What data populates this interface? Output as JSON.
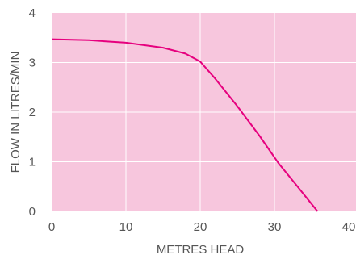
{
  "chart_data": {
    "type": "line",
    "title": "",
    "xlabel": "METRES HEAD",
    "ylabel": "FLOW IN LITRES/MIN",
    "xlim": [
      0,
      40
    ],
    "ylim": [
      0,
      4
    ],
    "x_ticks": [
      "0",
      "10",
      "20",
      "30",
      "40"
    ],
    "y_ticks": [
      "0",
      "1",
      "2",
      "3",
      "4"
    ],
    "grid": true,
    "legend": "none",
    "series": [
      {
        "x": [
          0,
          5,
          10,
          15,
          18,
          20,
          22,
          25,
          28,
          30.5,
          33,
          35.8
        ],
        "y": [
          3.47,
          3.45,
          3.4,
          3.3,
          3.18,
          3.02,
          2.68,
          2.12,
          1.52,
          0.98,
          0.52,
          0.0
        ]
      }
    ],
    "colors": {
      "plot_background": "#F7C6DD",
      "gridline": "#FFFFFF",
      "line": "#E6007E",
      "text": "#555555"
    }
  }
}
